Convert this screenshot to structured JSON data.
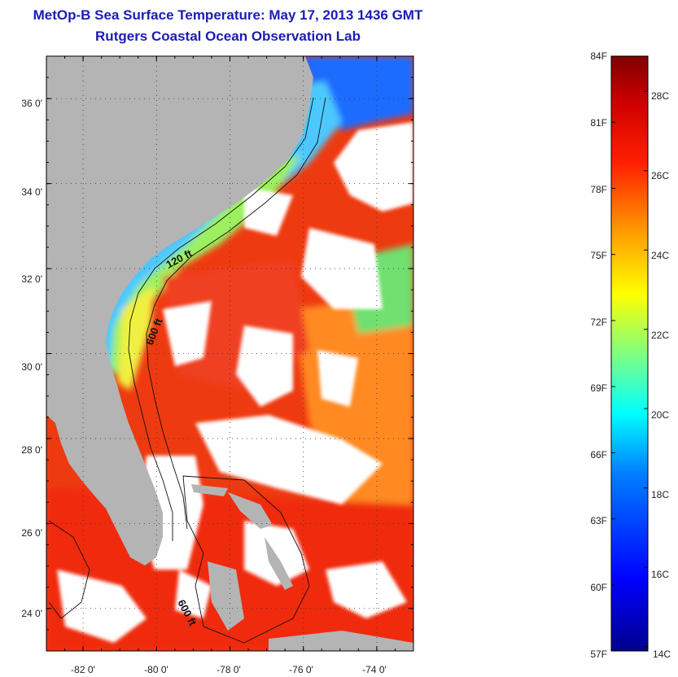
{
  "title": "MetOp-B Sea Surface Temperature:  May 17, 2013 1436 GMT",
  "subtitle": "Rutgers Coastal Ocean Observation Lab",
  "map": {
    "lat_labels": [
      "36 0'",
      "34 0'",
      "32 0'",
      "30 0'",
      "28 0'",
      "26 0'",
      "24 0'"
    ],
    "lat_values": [
      36,
      34,
      32,
      30,
      28,
      26,
      24
    ],
    "lon_labels": [
      "-82 0'",
      "-80 0'",
      "-78 0'",
      "-76 0'",
      "-74 0'"
    ],
    "lon_values": [
      -82,
      -80,
      -78,
      -76,
      -74
    ],
    "lat_range": [
      23,
      37
    ],
    "lon_range": [
      -83,
      -73
    ],
    "contour_labels": [
      "120 ft",
      "600 ft",
      "600 ft"
    ],
    "land_color": "#b4b4b4",
    "cloud_color": "#ffffff"
  },
  "colorbar": {
    "f_labels": [
      "84F",
      "81F",
      "78F",
      "75F",
      "72F",
      "69F",
      "66F",
      "63F",
      "60F",
      "57F"
    ],
    "f_values": [
      84,
      81,
      78,
      75,
      72,
      69,
      66,
      63,
      60,
      57
    ],
    "c_labels": [
      "28C",
      "26C",
      "24C",
      "22C",
      "20C",
      "18C",
      "16C",
      "14C"
    ],
    "c_values": [
      28,
      26,
      24,
      22,
      20,
      18,
      16,
      14
    ],
    "range_F": [
      57,
      84
    ],
    "colormap": "jet",
    "colors": [
      "#00008f",
      "#0000ff",
      "#0080ff",
      "#00ffff",
      "#80ff80",
      "#ffff00",
      "#ff8000",
      "#ff0000",
      "#800000"
    ]
  }
}
